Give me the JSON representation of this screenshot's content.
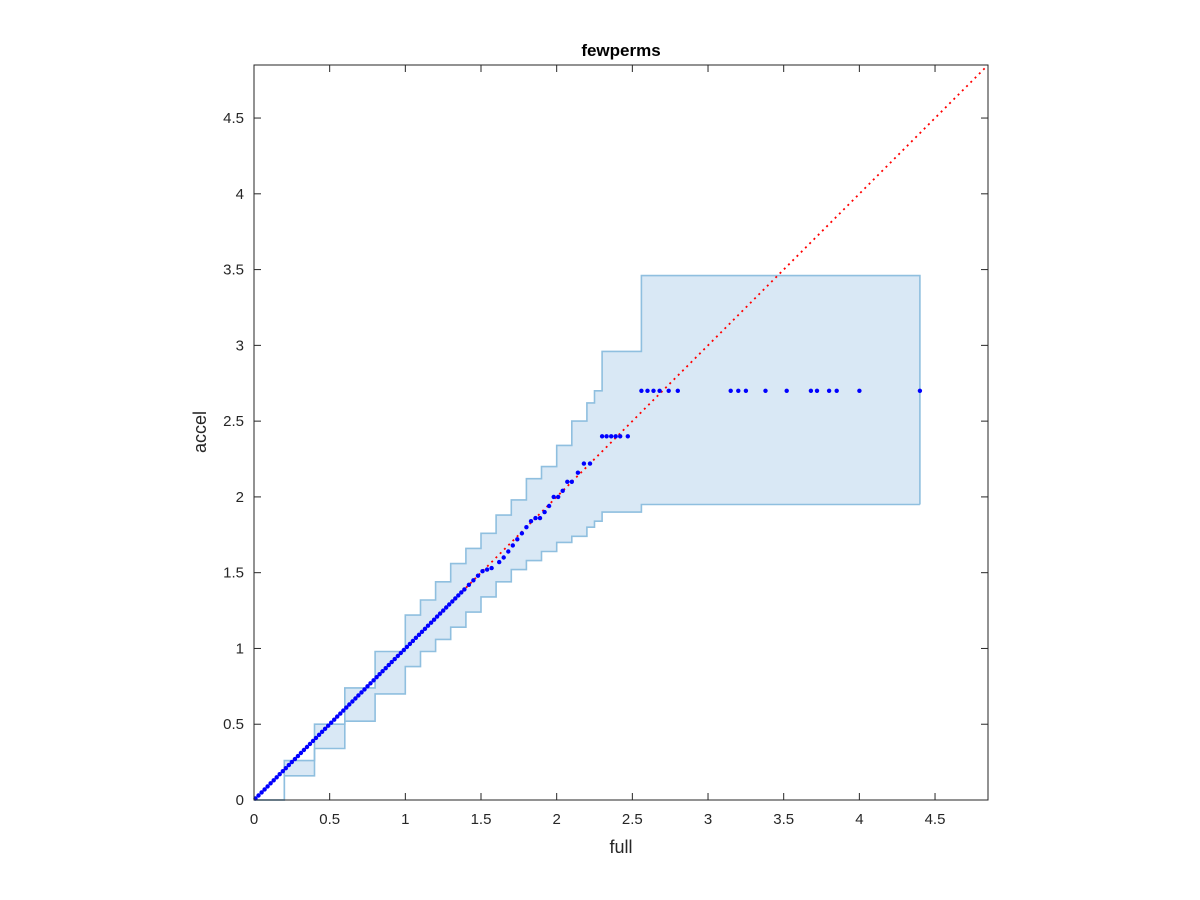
{
  "chart_data": {
    "type": "scatter",
    "title": "fewperms",
    "xlabel": "full",
    "ylabel": "accel",
    "xlim": [
      0,
      4.85
    ],
    "ylim": [
      0,
      4.85
    ],
    "xticks": [
      0,
      0.5,
      1,
      1.5,
      2,
      2.5,
      3,
      3.5,
      4,
      4.5
    ],
    "yticks": [
      0,
      0.5,
      1,
      1.5,
      2,
      2.5,
      3,
      3.5,
      4,
      4.5
    ],
    "xtick_labels": [
      "0",
      "0.5",
      "1",
      "1.5",
      "2",
      "2.5",
      "3",
      "3.5",
      "4",
      "4.5"
    ],
    "ytick_labels": [
      "0",
      "0.5",
      "1",
      "1.5",
      "2",
      "2.5",
      "3",
      "3.5",
      "4",
      "4.5"
    ],
    "grid": false,
    "colors": {
      "points": "#0000ff",
      "band_fill": "#d9e8f5",
      "band_edge": "#8fbfdf",
      "reference": "#ff0000",
      "axes": "#262626"
    },
    "reference_line": {
      "style": "dotted",
      "x": [
        0,
        4.85
      ],
      "y": [
        0,
        4.85
      ]
    },
    "band": {
      "x": [
        0,
        0.2,
        0.4,
        0.6,
        0.8,
        1.0,
        1.1,
        1.2,
        1.3,
        1.4,
        1.5,
        1.6,
        1.7,
        1.8,
        1.9,
        2.0,
        2.1,
        2.2,
        2.25,
        2.3,
        2.45,
        2.56,
        4.4
      ],
      "upper": [
        0,
        0.26,
        0.5,
        0.74,
        0.98,
        1.22,
        1.32,
        1.44,
        1.56,
        1.66,
        1.76,
        1.88,
        1.98,
        2.12,
        2.2,
        2.34,
        2.5,
        2.62,
        2.7,
        2.96,
        2.96,
        3.46,
        3.46
      ],
      "lower": [
        0,
        0.16,
        0.34,
        0.52,
        0.7,
        0.88,
        0.98,
        1.06,
        1.14,
        1.24,
        1.34,
        1.44,
        1.52,
        1.58,
        1.64,
        1.7,
        1.74,
        1.8,
        1.84,
        1.9,
        1.9,
        1.95,
        1.95
      ]
    },
    "series": [
      {
        "values_note_omitted": true,
        "x": [
          0.01,
          0.03,
          0.05,
          0.07,
          0.09,
          0.11,
          0.13,
          0.15,
          0.17,
          0.19,
          0.21,
          0.23,
          0.25,
          0.27,
          0.29,
          0.31,
          0.33,
          0.35,
          0.37,
          0.39,
          0.41,
          0.43,
          0.45,
          0.47,
          0.49,
          0.51,
          0.53,
          0.55,
          0.57,
          0.59,
          0.61,
          0.63,
          0.65,
          0.67,
          0.69,
          0.71,
          0.73,
          0.75,
          0.77,
          0.79,
          0.81,
          0.83,
          0.85,
          0.87,
          0.89,
          0.91,
          0.93,
          0.95,
          0.97,
          0.99,
          1.01,
          1.03,
          1.05,
          1.07,
          1.09,
          1.11,
          1.13,
          1.15,
          1.17,
          1.19,
          1.21,
          1.23,
          1.25,
          1.27,
          1.29,
          1.31,
          1.33,
          1.35,
          1.37,
          1.39,
          1.42,
          1.45,
          1.48,
          1.51,
          1.54,
          1.57,
          1.62,
          1.65,
          1.68,
          1.71,
          1.74,
          1.77,
          1.8,
          1.83,
          1.86,
          1.89,
          1.92,
          1.95,
          1.98,
          2.01,
          2.04,
          2.07,
          2.1,
          2.14,
          2.18,
          2.22,
          2.3,
          2.33,
          2.36,
          2.39,
          2.42,
          2.47,
          2.56,
          2.6,
          2.64,
          2.68,
          2.74,
          2.8,
          3.15,
          3.2,
          3.25,
          3.38,
          3.52,
          3.68,
          3.72,
          3.8,
          3.85,
          4.0,
          4.4
        ],
        "y": [
          0.01,
          0.03,
          0.05,
          0.07,
          0.09,
          0.11,
          0.13,
          0.15,
          0.17,
          0.19,
          0.21,
          0.23,
          0.25,
          0.27,
          0.29,
          0.31,
          0.33,
          0.35,
          0.37,
          0.39,
          0.41,
          0.43,
          0.45,
          0.47,
          0.49,
          0.51,
          0.53,
          0.55,
          0.57,
          0.59,
          0.61,
          0.63,
          0.65,
          0.67,
          0.69,
          0.71,
          0.73,
          0.75,
          0.77,
          0.79,
          0.81,
          0.83,
          0.85,
          0.87,
          0.89,
          0.91,
          0.93,
          0.95,
          0.97,
          0.99,
          1.01,
          1.03,
          1.05,
          1.07,
          1.09,
          1.11,
          1.13,
          1.15,
          1.17,
          1.19,
          1.21,
          1.23,
          1.25,
          1.27,
          1.29,
          1.31,
          1.33,
          1.35,
          1.37,
          1.39,
          1.42,
          1.45,
          1.48,
          1.51,
          1.52,
          1.53,
          1.57,
          1.6,
          1.64,
          1.68,
          1.72,
          1.76,
          1.8,
          1.84,
          1.86,
          1.86,
          1.9,
          1.94,
          2.0,
          2.0,
          2.04,
          2.1,
          2.1,
          2.16,
          2.22,
          2.22,
          2.4,
          2.4,
          2.4,
          2.4,
          2.4,
          2.4,
          2.7,
          2.7,
          2.7,
          2.7,
          2.7,
          2.7,
          2.7,
          2.7,
          2.7,
          2.7,
          2.7,
          2.7,
          2.7,
          2.7,
          2.7,
          2.7,
          2.7
        ]
      }
    ]
  }
}
